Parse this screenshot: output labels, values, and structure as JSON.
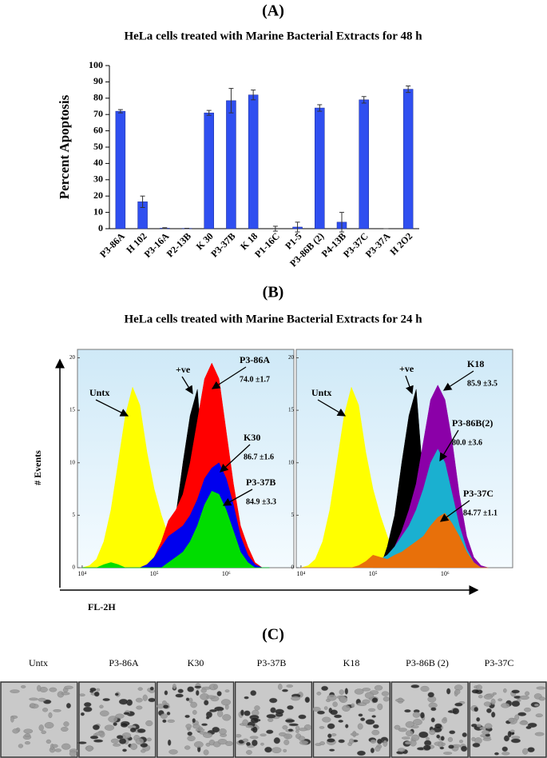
{
  "panel_labels": [
    "(A)",
    "(B)",
    "(C)"
  ],
  "chart_data": [
    {
      "type": "bar",
      "title": "HeLa cells treated with Marine Bacterial Extracts for 48 h",
      "y_label": "Percent  Apoptosis",
      "categories": [
        "P3-86A",
        "H 102",
        "P3-16A",
        "P2-13B",
        "K 30",
        "P3-37B",
        "K 18",
        "P1-16C",
        "P1-5",
        "P3-86B (2)",
        "P4-13B",
        "P3-37C",
        "P3-37A",
        "H 2O2"
      ],
      "values": [
        72,
        16.5,
        0.3,
        0.2,
        71,
        78.5,
        82,
        0,
        1,
        74,
        4,
        79,
        0,
        85.5
      ],
      "errors": [
        1,
        3.5,
        0.3,
        0,
        1.5,
        7.5,
        3,
        1.5,
        3,
        2,
        6,
        2,
        0,
        2
      ],
      "color": "#2f4ff0",
      "ylim": [
        0,
        100
      ],
      "yticks": [
        0,
        10,
        20,
        30,
        40,
        50,
        60,
        70,
        80,
        90,
        100
      ]
    },
    {
      "type": "area",
      "title": "HeLa cells treated with Marine Bacterial Extracts for 24 h",
      "y_label": "# Events",
      "x_label": "FL-2H",
      "log_x": true,
      "x": [
        10000,
        12600,
        15800,
        20000,
        25100,
        31600,
        39800,
        50100,
        63100,
        79400,
        100000,
        126000,
        158000,
        200000,
        251000,
        316000,
        398000,
        501000,
        631000,
        794000,
        1000000,
        1260000,
        1580000,
        2000000,
        2510000,
        3160000,
        3980000
      ],
      "xlim": [
        8600,
        8700000
      ],
      "xticks": [
        {
          "value": 10000,
          "label": "10⁴"
        },
        {
          "value": 100000,
          "label": "10⁵"
        },
        {
          "value": 1000000,
          "label": "10⁶"
        }
      ],
      "ylim": [
        0,
        20.8
      ],
      "yticks": [
        0,
        5,
        10,
        15,
        20
      ],
      "series": [
        {
          "name": "Untx",
          "color": "#ffff00",
          "values": [
            0,
            0.2,
            0.8,
            2.5,
            5.5,
            10,
            14.5,
            17.2,
            15.5,
            11,
            7.5,
            5,
            3,
            1.2,
            0.3,
            0,
            0,
            0,
            0,
            0,
            0,
            0,
            0,
            0,
            0,
            0,
            0
          ]
        },
        {
          "name": "+ve",
          "color": "#000000",
          "values": [
            0,
            0,
            0,
            0,
            0,
            0,
            0,
            0,
            0,
            0,
            0,
            0,
            2,
            5,
            10,
            14.5,
            17,
            8,
            1,
            0,
            0,
            0,
            0,
            0,
            0,
            0,
            0
          ]
        },
        {
          "name": "P3-86A",
          "stat": "74.0 ±1.7",
          "color": "#ff0000",
          "values": [
            0,
            0,
            0,
            0,
            0,
            0,
            0,
            0,
            0,
            0.3,
            1,
            2.5,
            4.5,
            5.5,
            7,
            10,
            14,
            18,
            19.5,
            18,
            13,
            8,
            4,
            2,
            0.5,
            0,
            0
          ]
        },
        {
          "name": "K30",
          "stat": "86.7 ±1.6",
          "color": "#0000ee",
          "values": [
            0,
            0,
            0,
            0,
            0,
            0,
            0,
            0,
            0,
            0.3,
            1,
            2,
            3,
            3.5,
            4,
            5,
            6.5,
            8.5,
            9.5,
            10,
            8.5,
            6,
            3,
            1.2,
            0.3,
            0,
            0
          ]
        },
        {
          "name": "P3-37B",
          "stat": "84.9 ±3.3",
          "color": "#00dd00",
          "values": [
            0,
            0,
            0,
            0.3,
            0.5,
            0.3,
            0,
            0,
            0,
            0,
            0,
            0,
            0.5,
            1,
            1.5,
            2.5,
            4,
            6,
            7.3,
            7,
            5.5,
            3.5,
            1.5,
            0.5,
            0,
            0,
            0
          ]
        }
      ]
    },
    {
      "type": "area",
      "log_x": true,
      "x": [
        10000,
        12600,
        15800,
        20000,
        25100,
        31600,
        39800,
        50100,
        63100,
        79400,
        100000,
        126000,
        158000,
        200000,
        251000,
        316000,
        398000,
        501000,
        631000,
        794000,
        1000000,
        1260000,
        1580000,
        2000000,
        2510000,
        3160000,
        3980000
      ],
      "xlim": [
        8600,
        8700000
      ],
      "xticks": [
        {
          "value": 10000,
          "label": "10⁴"
        },
        {
          "value": 100000,
          "label": "10⁵"
        },
        {
          "value": 1000000,
          "label": "10⁶"
        }
      ],
      "ylim": [
        0,
        20.8
      ],
      "yticks": [
        0,
        5,
        10,
        15,
        20
      ],
      "series": [
        {
          "name": "Untx",
          "color": "#ffff00",
          "values": [
            0,
            0.2,
            0.8,
            2.5,
            5.5,
            10,
            14.5,
            17.2,
            15.5,
            11,
            7.5,
            5,
            3,
            1.2,
            0.3,
            0,
            0,
            0,
            0,
            0,
            0,
            0,
            0,
            0,
            0,
            0,
            0
          ]
        },
        {
          "name": "+ve",
          "color": "#000000",
          "values": [
            0,
            0,
            0,
            0,
            0,
            0,
            0,
            0,
            0,
            0,
            0,
            0,
            2,
            5,
            10,
            14.5,
            17,
            8,
            1,
            0,
            0,
            0,
            0,
            0,
            0,
            0,
            0
          ]
        },
        {
          "name": "K18",
          "stat": "85.9 ±3.5",
          "color": "#8b00a8",
          "values": [
            0,
            0,
            0,
            0,
            0,
            0,
            0,
            0,
            0,
            0,
            0,
            0.8,
            1.2,
            2,
            3.5,
            5.5,
            8,
            12,
            16,
            17.4,
            16,
            12,
            7,
            3,
            1,
            0.2,
            0
          ]
        },
        {
          "name": "P3-86B(2)",
          "stat": "80.0 ±3.6",
          "color": "#1ab0d0",
          "values": [
            0,
            0,
            0,
            0,
            0,
            0,
            0,
            0,
            0,
            0,
            0,
            0.8,
            1.2,
            2,
            3,
            4,
            5.5,
            7.5,
            10,
            11.3,
            10,
            7,
            4,
            1.8,
            0.5,
            0,
            0
          ]
        },
        {
          "name": "P3-37C",
          "stat": "84.77 ±1.1",
          "color": "#e8700a",
          "values": [
            0,
            0,
            0,
            0,
            0,
            0,
            0,
            0,
            0.2,
            0.6,
            1.2,
            1,
            0.8,
            1.2,
            1.5,
            2,
            2.5,
            3,
            4,
            4.8,
            5.2,
            4.2,
            3,
            1.5,
            0.5,
            0,
            0
          ]
        }
      ]
    }
  ],
  "panel_c": {
    "images": [
      "Untx",
      "P3-86A",
      "K30",
      "P3-37B",
      "K18",
      "P3-86B (2)",
      "P3-37C"
    ]
  }
}
